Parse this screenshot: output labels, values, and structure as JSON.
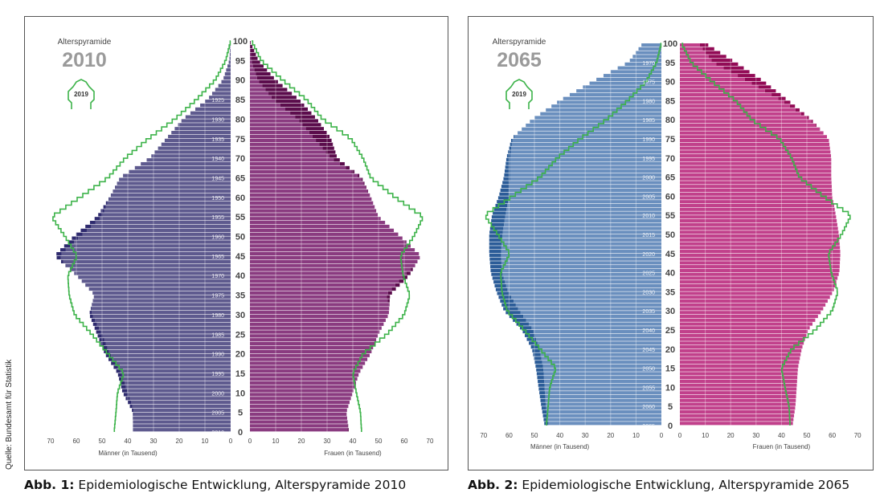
{
  "source": "Quelle: Bundesamt für Statistik",
  "captions": [
    {
      "label": "Abb. 1:",
      "text": "Epidemiologische Entwicklung, Alterspyramide 2010"
    },
    {
      "label": "Abb. 2:",
      "text": "Epidemiologische Entwicklung, Alterspyramide 2065"
    }
  ],
  "chart_data": [
    {
      "type": "bar",
      "subtype": "population-pyramid",
      "title": "Alterspyramide",
      "year": "2010",
      "legend": "2019",
      "ages": [
        0,
        5,
        10,
        15,
        20,
        25,
        30,
        35,
        40,
        45,
        50,
        55,
        60,
        65,
        70,
        75,
        80,
        85,
        90,
        95,
        100
      ],
      "age_ticks": [
        "0",
        "5",
        "10",
        "15",
        "20",
        "25",
        "30",
        "35",
        "40",
        "45",
        "50",
        "55",
        "60",
        "65",
        "70",
        "75",
        "80",
        "85",
        "90",
        "95",
        "100"
      ],
      "birth_year_ticks": [
        {
          "age": 0,
          "label": "2010"
        },
        {
          "age": 5,
          "label": "2005"
        },
        {
          "age": 10,
          "label": "2000"
        },
        {
          "age": 15,
          "label": "1995"
        },
        {
          "age": 20,
          "label": "1990"
        },
        {
          "age": 25,
          "label": "1985"
        },
        {
          "age": 30,
          "label": "1980"
        },
        {
          "age": 35,
          "label": "1975"
        },
        {
          "age": 40,
          "label": "1970"
        },
        {
          "age": 45,
          "label": "1965"
        },
        {
          "age": 50,
          "label": "1960"
        },
        {
          "age": 55,
          "label": "1955"
        },
        {
          "age": 60,
          "label": "1950"
        },
        {
          "age": 65,
          "label": "1945"
        },
        {
          "age": 70,
          "label": "1940"
        },
        {
          "age": 75,
          "label": "1935"
        },
        {
          "age": 80,
          "label": "1930"
        },
        {
          "age": 85,
          "label": "1925"
        }
      ],
      "x_ticks": [
        "70",
        "60",
        "50",
        "40",
        "30",
        "20",
        "10",
        "0"
      ],
      "x_tick_values": [
        70,
        60,
        50,
        40,
        30,
        20,
        10,
        0
      ],
      "xlim": [
        0,
        70
      ],
      "male_label": "Männer (in Tausend)",
      "female_label": "Frauen (in Tausend)",
      "series": [
        {
          "name": "Männer",
          "values": [
            38,
            38,
            42,
            44,
            49,
            52,
            55,
            53,
            60,
            68.5,
            61,
            52,
            47,
            43,
            31.5,
            25,
            18.5,
            9,
            3,
            0.5,
            0
          ]
        },
        {
          "name": "Frauen",
          "values": [
            38.5,
            37.5,
            40,
            42.5,
            47,
            50,
            54,
            54.5,
            62,
            66.5,
            58.5,
            50,
            47,
            43.5,
            34,
            31.5,
            26,
            19,
            10,
            3.3,
            0
          ]
        },
        {
          "name": "Männer 2019",
          "values": [
            45.3,
            44.6,
            44,
            41.5,
            47.7,
            54,
            60.7,
            62.8,
            63.3,
            59.7,
            64.4,
            69.6,
            58.6,
            47.7,
            41,
            32,
            21.7,
            13.3,
            6,
            1.9,
            0
          ]
        },
        {
          "name": "Frauen 2019",
          "values": [
            43.4,
            43,
            41.4,
            40,
            44,
            53.3,
            60,
            62.2,
            59.6,
            58.5,
            63.7,
            67.4,
            56.5,
            47,
            44,
            39.3,
            28.3,
            22,
            12.7,
            4.4,
            0.7
          ]
        }
      ],
      "colors": {
        "male": "#5e5a8e",
        "male_surplus": "#2e2a6e",
        "female": "#8a3b80",
        "female_surplus": "#5b0c4c",
        "outline": "#3db34a"
      }
    },
    {
      "type": "bar",
      "subtype": "population-pyramid",
      "title": "Alterspyramide",
      "year": "2065",
      "legend": "2019",
      "ages": [
        0,
        5,
        10,
        15,
        20,
        25,
        30,
        35,
        40,
        45,
        50,
        55,
        60,
        65,
        70,
        75,
        80,
        85,
        90,
        95,
        100
      ],
      "age_ticks": [
        "0",
        "5",
        "10",
        "15",
        "20",
        "25",
        "30",
        "35",
        "40",
        "45",
        "50",
        "55",
        "60",
        "65",
        "70",
        "75",
        "80",
        "85",
        "90",
        "95",
        "100"
      ],
      "birth_year_ticks": [
        {
          "age": 0,
          "label": "2065"
        },
        {
          "age": 5,
          "label": "2060"
        },
        {
          "age": 10,
          "label": "2055"
        },
        {
          "age": 15,
          "label": "2050"
        },
        {
          "age": 20,
          "label": "2045"
        },
        {
          "age": 25,
          "label": "2040"
        },
        {
          "age": 30,
          "label": "2035"
        },
        {
          "age": 35,
          "label": "2030"
        },
        {
          "age": 40,
          "label": "2025"
        },
        {
          "age": 45,
          "label": "2020"
        },
        {
          "age": 50,
          "label": "2015"
        },
        {
          "age": 55,
          "label": "2010"
        },
        {
          "age": 60,
          "label": "2005"
        },
        {
          "age": 65,
          "label": "2000"
        },
        {
          "age": 70,
          "label": "1995"
        },
        {
          "age": 75,
          "label": "1990"
        },
        {
          "age": 80,
          "label": "1985"
        },
        {
          "age": 85,
          "label": "1980"
        },
        {
          "age": 90,
          "label": "1975"
        },
        {
          "age": 95,
          "label": "1970"
        }
      ],
      "x_ticks": [
        "70",
        "60",
        "50",
        "40",
        "30",
        "20",
        "10",
        "0"
      ],
      "x_tick_values": [
        70,
        60,
        50,
        40,
        30,
        20,
        10,
        0
      ],
      "xlim": [
        0,
        70
      ],
      "male_label": "Männer (in Tausend)",
      "female_label": "Frauen (in Tausend)",
      "series": [
        {
          "name": "Männer",
          "values": [
            46,
            47.3,
            48.4,
            49.4,
            51,
            55,
            62,
            65,
            67.2,
            67.8,
            67.8,
            66.7,
            64,
            62,
            61,
            59,
            51,
            40,
            27,
            13,
            7.3
          ]
        },
        {
          "name": "Frauen",
          "values": [
            44.4,
            45.5,
            46,
            46.5,
            48,
            50.6,
            56,
            60.4,
            62.8,
            63.2,
            62.6,
            61.4,
            60,
            59.6,
            59.6,
            58.6,
            51.7,
            42.6,
            33,
            21.8,
            10
          ]
        },
        {
          "name": "Männer 2019",
          "values": [
            45.3,
            44.6,
            44,
            41.5,
            47.7,
            54,
            60.7,
            62.8,
            63.3,
            59.7,
            64.4,
            69.6,
            58.6,
            47.7,
            41,
            32,
            21.7,
            13.3,
            6,
            1.9,
            0
          ]
        },
        {
          "name": "Frauen 2019",
          "values": [
            43.4,
            43,
            41.4,
            40,
            44,
            53.3,
            60,
            62.2,
            59.6,
            58.5,
            63.7,
            67.4,
            56.5,
            47,
            44,
            39.3,
            28.3,
            22,
            12.7,
            4.4,
            0.7
          ]
        }
      ],
      "colors": {
        "male": "#6a8fbe",
        "male_surplus": "#2b5c98",
        "female": "#c1408b",
        "female_surplus": "#920b56",
        "outline": "#3db34a"
      }
    }
  ]
}
